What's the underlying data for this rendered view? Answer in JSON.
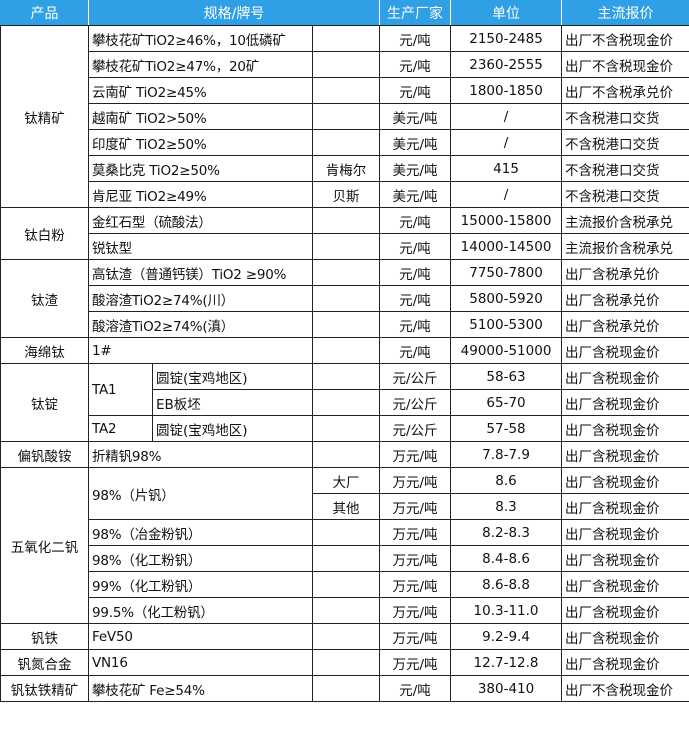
{
  "header": {
    "columns": [
      "产品",
      "规格/牌号",
      "生产厂家",
      "单位",
      "主流报价",
      "备注"
    ],
    "color": "#2f9fe6"
  },
  "groups": [
    {
      "product": "钛精矿",
      "rows": [
        {
          "spec": "攀枝花矿TiO2≥46%，10低磷矿",
          "maker": "",
          "unit": "元/吨",
          "price": "2150-2485",
          "note": "出厂不含税现金价"
        },
        {
          "spec": "攀枝花矿TiO2≥47%，20矿",
          "maker": "",
          "unit": "元/吨",
          "price": "2360-2555",
          "note": "出厂不含税现金价"
        },
        {
          "spec": "云南矿 TiO2≥45%",
          "maker": "",
          "unit": "元/吨",
          "price": "1800-1850",
          "note": "出厂不含税承兑价"
        },
        {
          "spec": "越南矿 TiO2>50%",
          "maker": "",
          "unit": "美元/吨",
          "price": "/",
          "note": "不含税港口交货"
        },
        {
          "spec": "印度矿 TiO2≥50%",
          "maker": "",
          "unit": "美元/吨",
          "price": "/",
          "note": "不含税港口交货"
        },
        {
          "spec": "莫桑比克 TiO2≥50%",
          "maker": "肯梅尔",
          "unit": "美元/吨",
          "price": "415",
          "note": "不含税港口交货"
        },
        {
          "spec": "肯尼亚 TiO2≥49%",
          "maker": "贝斯",
          "unit": "美元/吨",
          "price": "/",
          "note": "不含税港口交货"
        }
      ]
    },
    {
      "product": "钛白粉",
      "rows": [
        {
          "spec": "金红石型（硫酸法）",
          "maker": "",
          "unit": "元/吨",
          "price": "15000-15800",
          "note": "主流报价含税承兑"
        },
        {
          "spec": "锐钛型",
          "maker": "",
          "unit": "元/吨",
          "price": "14000-14500",
          "note": "主流报价含税承兑"
        }
      ]
    },
    {
      "product": "钛渣",
      "rows": [
        {
          "spec": "高钛渣（普通钙镁）TiO2 ≥90%",
          "maker": "",
          "unit": "元/吨",
          "price": "7750-7800",
          "note": "出厂含税承兑价"
        },
        {
          "spec": "酸溶渣TiO2≥74%(川）",
          "maker": "",
          "unit": "元/吨",
          "price": "5800-5920",
          "note": "出厂含税承兑价"
        },
        {
          "spec": "酸溶渣TiO2≥74%(滇）",
          "maker": "",
          "unit": "元/吨",
          "price": "5100-5300",
          "note": "出厂含税承兑价"
        }
      ]
    },
    {
      "product": "海绵钛",
      "rows": [
        {
          "spec": "1#",
          "maker": "",
          "unit": "元/吨",
          "price": "49000-51000",
          "note": "出厂含税现金价"
        }
      ]
    },
    {
      "product": "钛锭",
      "rows": [
        {
          "spec": "TA1",
          "sub": "圆锭(宝鸡地区)",
          "unit": "元/公斤",
          "price": "58-63",
          "note": "出厂含税现金价"
        },
        {
          "sub": "EB板坯",
          "unit": "元/公斤",
          "price": "65-70",
          "note": "出厂含税现金价"
        },
        {
          "spec": "TA2",
          "sub": "圆锭(宝鸡地区)",
          "unit": "元/公斤",
          "price": "57-58",
          "note": "出厂含税现金价"
        }
      ]
    },
    {
      "product": "偏钒酸铵",
      "rows": [
        {
          "spec": "折精钒98%",
          "maker": "",
          "unit": "万元/吨",
          "price": "7.8-7.9",
          "note": "出厂含税现金价"
        }
      ]
    },
    {
      "product": "五氧化二钒",
      "rows": [
        {
          "spec": "98%（片钒）",
          "maker": "大厂",
          "unit": "万元/吨",
          "price": "8.6",
          "note": "出厂含税现金价"
        },
        {
          "maker": "其他",
          "unit": "万元/吨",
          "price": "8.3",
          "note": "出厂含税现金价"
        },
        {
          "spec": "98%（冶金粉钒）",
          "maker": "",
          "unit": "万元/吨",
          "price": "8.2-8.3",
          "note": "出厂含税现金价"
        },
        {
          "spec": "98%（化工粉钒）",
          "maker": "",
          "unit": "万元/吨",
          "price": "8.4-8.6",
          "note": "出厂含税现金价"
        },
        {
          "spec": "99%（化工粉钒）",
          "maker": "",
          "unit": "万元/吨",
          "price": "8.6-8.8",
          "note": "出厂含税现金价"
        },
        {
          "spec": "99.5%（化工粉钒）",
          "maker": "",
          "unit": "万元/吨",
          "price": "10.3-11.0",
          "note": "出厂含税现金价"
        }
      ]
    },
    {
      "product": "钒铁",
      "rows": [
        {
          "spec": "FeV50",
          "maker": "",
          "unit": "万元/吨",
          "price": "9.2-9.4",
          "note": "出厂含税现金价"
        }
      ]
    },
    {
      "product": "钒氮合金",
      "rows": [
        {
          "spec": "VN16",
          "maker": "",
          "unit": "万元/吨",
          "price": "12.7-12.8",
          "note": "出厂含税现金价"
        }
      ]
    },
    {
      "product": "钒钛铁精矿",
      "rows": [
        {
          "spec": "攀枝花矿 Fe≥54%",
          "maker": "",
          "unit": "元/吨",
          "price": "380-410",
          "note": "出厂不含税现金价"
        }
      ]
    }
  ]
}
